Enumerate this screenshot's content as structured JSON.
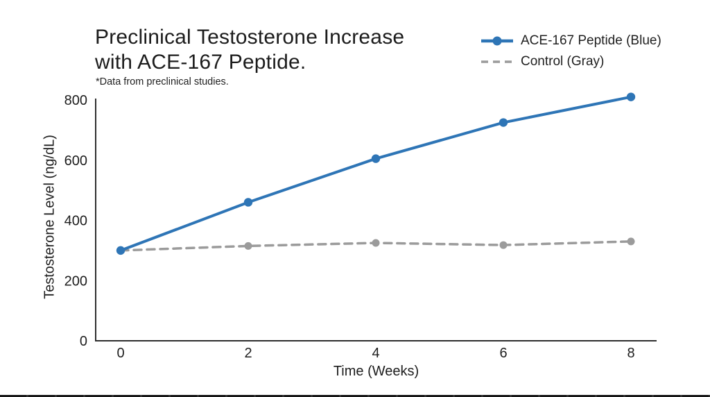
{
  "header": {
    "title_line1": "Preclinical Testosterone Increase",
    "title_line2": "with ACE-167 Peptide.",
    "footnote": "*Data from preclinical studies."
  },
  "legend": {
    "items": [
      {
        "label": "ACE-167 Peptide (Blue)",
        "color": "#2e75b6",
        "style": "solid-line-circle-marker"
      },
      {
        "label": "Control (Gray)",
        "color": "#9b9b9b",
        "style": "dashed-line"
      }
    ]
  },
  "chart_data": {
    "type": "line",
    "title": "Preclinical Testosterone Increase with ACE-167 Peptide.",
    "subtitle": "*Data from preclinical studies.",
    "xlabel": "Time (Weeks)",
    "ylabel": "Testosterone Level (ng/dL)",
    "x": [
      0,
      2,
      4,
      6,
      8
    ],
    "series": [
      {
        "name": "ACE-167 Peptide (Blue)",
        "color": "#2e75b6",
        "dash": false,
        "values": [
          300,
          460,
          605,
          725,
          810
        ]
      },
      {
        "name": "Control (Gray)",
        "color": "#9b9b9b",
        "dash": true,
        "values": [
          300,
          315,
          325,
          318,
          330
        ]
      }
    ],
    "xlim": [
      0,
      8
    ],
    "ylim": [
      0,
      800
    ],
    "xticks": [
      0,
      2,
      4,
      6,
      8
    ],
    "yticks": [
      0,
      200,
      400,
      600,
      800
    ],
    "grid": false,
    "legend_position": "top-right",
    "colors": {
      "axis": "#2d2d2d",
      "text": "#1d1d1d",
      "accent_blue": "#2e75b6",
      "accent_gray": "#9b9b9b"
    }
  }
}
